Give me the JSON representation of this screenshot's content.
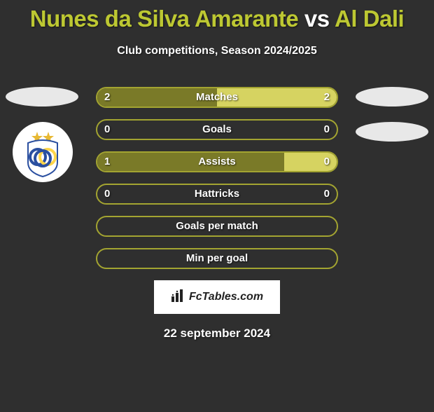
{
  "title_player1": "Nunes da Silva Amarante",
  "title_vs": "vs",
  "title_player2": "Al Dali",
  "subtitle": "Club competitions, Season 2024/2025",
  "rows": [
    {
      "label": "Matches",
      "left": "2",
      "right": "2",
      "left_pct": 50,
      "right_pct": 50
    },
    {
      "label": "Goals",
      "left": "0",
      "right": "0",
      "left_pct": 0,
      "right_pct": 0
    },
    {
      "label": "Assists",
      "left": "1",
      "right": "0",
      "left_pct": 78,
      "right_pct": 22
    },
    {
      "label": "Hattricks",
      "left": "0",
      "right": "0",
      "left_pct": 0,
      "right_pct": 0
    },
    {
      "label": "Goals per match",
      "left": "",
      "right": "",
      "left_pct": 0,
      "right_pct": 0
    },
    {
      "label": "Min per goal",
      "left": "",
      "right": "",
      "left_pct": 0,
      "right_pct": 0
    }
  ],
  "colors": {
    "olive": "#a3a431",
    "olive_dark": "#7a7a28",
    "olive_light": "#d6d361",
    "border": "#a3a431",
    "title": "#bdc832",
    "bg": "#2f2f2f",
    "ellipse": "#e8e8e8"
  },
  "logo_text": "FcTables.com",
  "date": "22 september 2024",
  "club_badge": {
    "stars": 2,
    "ring_colors": [
      "#2a4fa0",
      "#ffd54a",
      "#2a4fa0"
    ]
  }
}
